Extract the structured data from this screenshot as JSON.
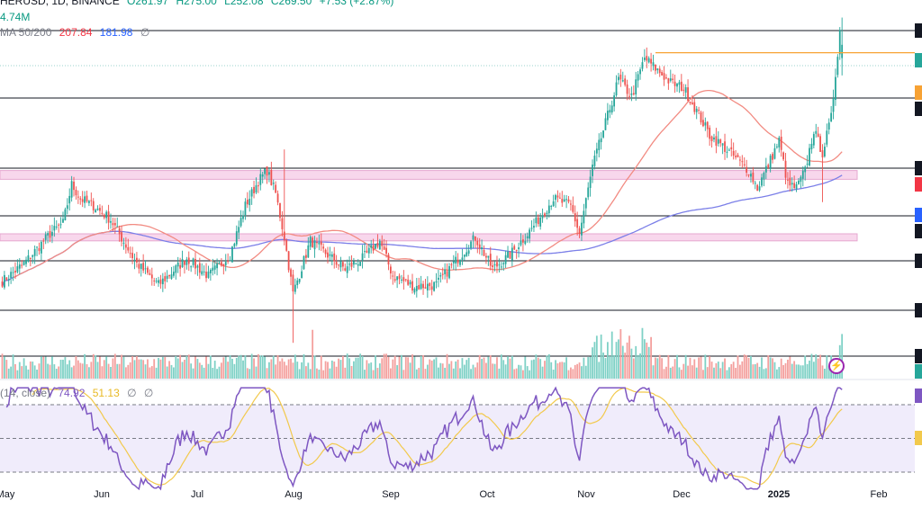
{
  "legend": {
    "symbol_line": "HERUSD, 1D, BINANCE",
    "open": "O261.97",
    "high": "H275.00",
    "low": "L252.08",
    "close": "C269.50",
    "change": "+7.53 (+2.87%)",
    "volume": "4.74M",
    "ma_label": "MA 50/200",
    "ma50_value": "207.84",
    "ma200_value": "181.98",
    "ma_extra": "∅",
    "rsi_label": "(14, close)",
    "rsi_value": "74.92",
    "rsi_ma_value": "51.13",
    "rsi_extra1": "∅",
    "rsi_extra2": "∅"
  },
  "colors": {
    "up": "#26a69a",
    "down": "#ef5350",
    "ma50": "#f28b82",
    "ma200": "#7b7fe8",
    "rsi": "#7e57c2",
    "rsi_ma": "#f2c94c",
    "zone": "#f8d7ec",
    "resistance": "#f7a234"
  },
  "chart_data": {
    "type": "candlestick",
    "x_ticks": [
      "May",
      "Jun",
      "Jul",
      "Aug",
      "Sep",
      "Oct",
      "Nov",
      "Dec",
      "2025",
      "Feb"
    ],
    "bold_ticks": [
      "2025"
    ],
    "price_range": [
      100,
      300
    ],
    "support_resistance": [
      290,
      261,
      221,
      195,
      155,
      138,
      106
    ],
    "resistance_line": 265,
    "zones": [
      [
        193,
        198
      ],
      [
        158,
        162
      ]
    ],
    "start_price": 135,
    "anchors": [
      [
        0,
        135
      ],
      [
        10,
        145
      ],
      [
        22,
        162
      ],
      [
        28,
        168
      ],
      [
        32,
        190
      ],
      [
        36,
        182
      ],
      [
        42,
        178
      ],
      [
        50,
        170
      ],
      [
        62,
        145
      ],
      [
        72,
        133
      ],
      [
        85,
        148
      ],
      [
        95,
        138
      ],
      [
        105,
        150
      ],
      [
        112,
        178
      ],
      [
        118,
        192
      ],
      [
        122,
        198
      ],
      [
        126,
        185
      ],
      [
        130,
        160
      ],
      [
        134,
        128
      ],
      [
        142,
        158
      ],
      [
        150,
        150
      ],
      [
        158,
        142
      ],
      [
        166,
        148
      ],
      [
        174,
        158
      ],
      [
        180,
        138
      ],
      [
        190,
        132
      ],
      [
        200,
        133
      ],
      [
        210,
        148
      ],
      [
        218,
        160
      ],
      [
        226,
        142
      ],
      [
        234,
        150
      ],
      [
        244,
        165
      ],
      [
        254,
        182
      ],
      [
        262,
        178
      ],
      [
        266,
        162
      ],
      [
        272,
        200
      ],
      [
        278,
        225
      ],
      [
        284,
        250
      ],
      [
        290,
        240
      ],
      [
        296,
        262
      ],
      [
        302,
        255
      ],
      [
        308,
        248
      ],
      [
        314,
        245
      ],
      [
        320,
        232
      ],
      [
        326,
        218
      ],
      [
        332,
        212
      ],
      [
        338,
        205
      ],
      [
        344,
        198
      ],
      [
        348,
        188
      ],
      [
        354,
        204
      ],
      [
        358,
        215
      ],
      [
        362,
        190
      ],
      [
        366,
        188
      ],
      [
        370,
        198
      ],
      [
        374,
        221
      ],
      [
        378,
        208
      ],
      [
        382,
        228
      ],
      [
        386,
        278
      ]
    ],
    "final_candle": {
      "open": 261.97,
      "high": 275.0,
      "low": 252.08,
      "close": 269.5
    },
    "ma50_end": 207.84,
    "ma200_end": 181.98,
    "volume": {
      "max": 35,
      "spike_index": 143,
      "last_value": 4.74
    },
    "rsi": {
      "range": [
        20,
        80
      ],
      "upper": 70,
      "middle": 50,
      "lower": 30,
      "last": 74.92,
      "ma_last": 51.13
    }
  }
}
